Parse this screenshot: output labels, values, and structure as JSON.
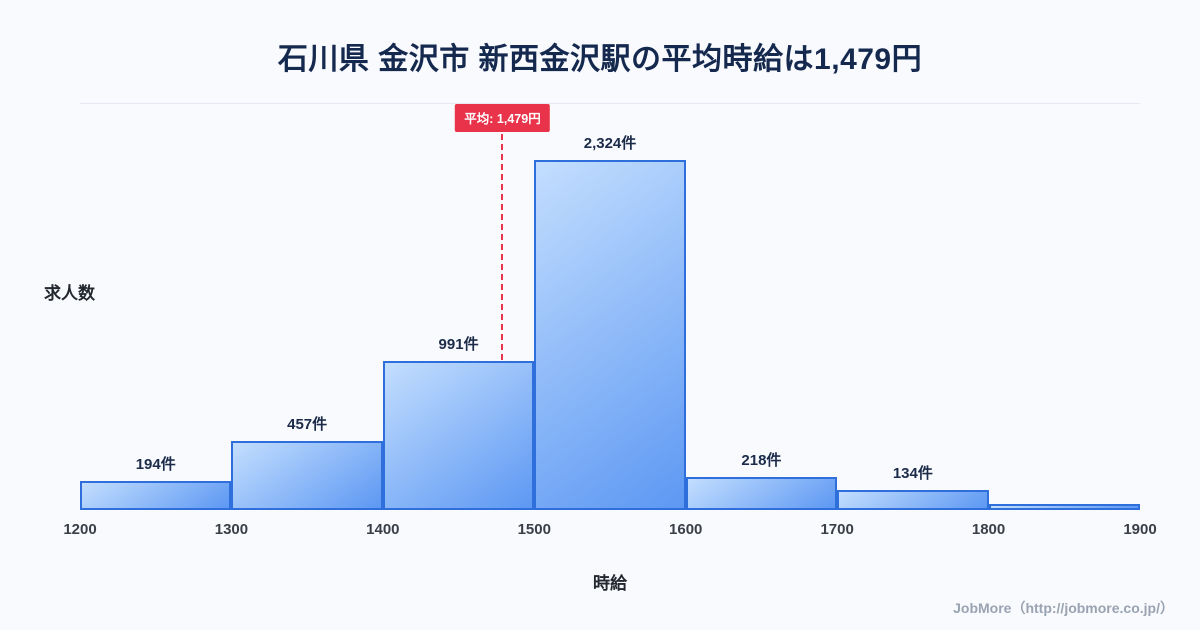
{
  "title": "石川県 金沢市 新西金沢駅の平均時給は1,479円",
  "y_axis_label": "求人数",
  "x_axis_label": "時給",
  "footer": "JobMore（http://jobmore.co.jp/）",
  "chart_data": {
    "type": "bar",
    "title": "石川県 金沢市 新西金沢駅の平均時給は1,479円",
    "xlabel": "時給",
    "ylabel": "求人数",
    "xlim": [
      1200,
      1900
    ],
    "ylim": [
      0,
      2520
    ],
    "grid": "top-line-only",
    "xticks": [
      1200,
      1300,
      1400,
      1500,
      1600,
      1700,
      1800,
      1900
    ],
    "bins": [
      {
        "x0": 1200,
        "x1": 1300,
        "value": 194,
        "label": "194件"
      },
      {
        "x0": 1300,
        "x1": 1400,
        "value": 457,
        "label": "457件"
      },
      {
        "x0": 1400,
        "x1": 1500,
        "value": 991,
        "label": "991件"
      },
      {
        "x0": 1500,
        "x1": 1600,
        "value": 2324,
        "label": "2,324件"
      },
      {
        "x0": 1600,
        "x1": 1700,
        "value": 218,
        "label": "218件"
      },
      {
        "x0": 1700,
        "x1": 1800,
        "value": 134,
        "label": "134件"
      },
      {
        "x0": 1800,
        "x1": 1900,
        "value": 40,
        "label": ""
      }
    ],
    "average": {
      "value": 1479,
      "label": "平均: 1,479円"
    },
    "colors": {
      "title_color": "#15294f",
      "bar_fill_top": "#c3defe",
      "bar_fill_bottom": "#5d98f3",
      "bar_border": "#2e6fdc",
      "average_line": "#e8334a",
      "background": "#f8fafd"
    }
  }
}
